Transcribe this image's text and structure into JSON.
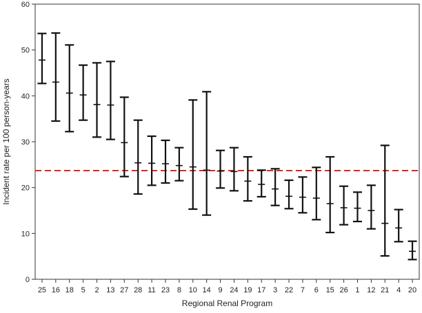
{
  "chart_data": {
    "type": "errorbar",
    "title": "",
    "xlabel": "Regional Renal Program",
    "ylabel": "Incident rate per 100 person-years",
    "ylim": [
      0,
      60
    ],
    "yticks": [
      0,
      10,
      20,
      30,
      40,
      50,
      60
    ],
    "reference_line": {
      "value": 23.7,
      "style": "dashed",
      "color": "#e8231f"
    },
    "error_color": "#111111",
    "categories": [
      "25",
      "16",
      "18",
      "5",
      "2",
      "13",
      "27",
      "28",
      "11",
      "23",
      "8",
      "10",
      "14",
      "9",
      "24",
      "19",
      "17",
      "3",
      "22",
      "7",
      "6",
      "15",
      "26",
      "1",
      "12",
      "21",
      "4",
      "20"
    ],
    "estimates": [
      47.8,
      43.0,
      40.6,
      40.2,
      38.1,
      38.0,
      29.8,
      25.4,
      25.3,
      25.2,
      24.8,
      24.5,
      23.8,
      23.6,
      23.5,
      21.4,
      20.7,
      19.7,
      18.1,
      17.9,
      17.7,
      16.5,
      15.6,
      15.5,
      15.0,
      12.2,
      11.2,
      6.1
    ],
    "lower": [
      42.7,
      34.5,
      32.2,
      34.7,
      31.0,
      30.5,
      22.4,
      18.6,
      20.5,
      21.0,
      21.5,
      15.3,
      14.0,
      19.9,
      19.3,
      17.1,
      18.0,
      16.1,
      15.4,
      14.5,
      13.0,
      10.2,
      11.9,
      12.6,
      11.0,
      5.1,
      8.2,
      4.3
    ],
    "upper": [
      53.6,
      53.7,
      51.1,
      46.7,
      47.2,
      47.5,
      39.7,
      34.7,
      31.2,
      30.3,
      28.7,
      39.1,
      40.9,
      28.1,
      28.7,
      26.7,
      23.8,
      24.1,
      21.6,
      22.3,
      24.4,
      26.7,
      20.3,
      19.0,
      20.5,
      29.2,
      15.2,
      8.3
    ]
  }
}
